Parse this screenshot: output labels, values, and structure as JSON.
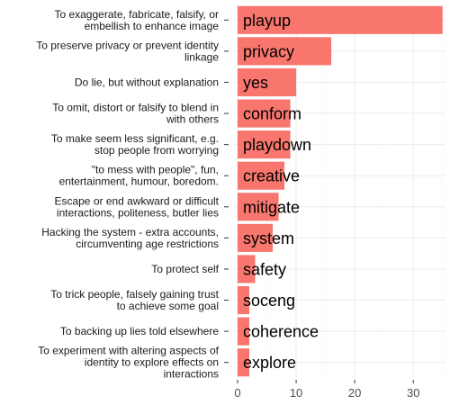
{
  "chart_data": {
    "type": "bar",
    "orientation": "horizontal",
    "title": "",
    "xlabel": "",
    "ylabel": "",
    "xlim": [
      0,
      35.5
    ],
    "xticks": [
      0,
      10,
      20,
      30
    ],
    "grid": true,
    "legend": "none",
    "bar_color": "#f8766d",
    "panel_color": "#ffffff",
    "grid_color": "#ebebeb",
    "categories": [
      {
        "label_lines": [
          "To exaggerate, fabricate, falsify, or",
          "embellish to enhance image"
        ],
        "code": "playup",
        "value": 35
      },
      {
        "label_lines": [
          "To preserve privacy or prevent identity",
          "linkage"
        ],
        "code": "privacy",
        "value": 16
      },
      {
        "label_lines": [
          "Do lie, but without explanation"
        ],
        "code": "yes",
        "value": 10
      },
      {
        "label_lines": [
          "To omit, distort or falsify to blend in",
          "with others"
        ],
        "code": "conform",
        "value": 9
      },
      {
        "label_lines": [
          "To make seem less significant, e.g.",
          "stop people from worrying"
        ],
        "code": "playdown",
        "value": 9
      },
      {
        "label_lines": [
          "\"to mess with people\", fun,",
          "entertainment, humour, boredom."
        ],
        "code": "creative",
        "value": 8
      },
      {
        "label_lines": [
          "Escape or end awkward or difficult",
          "interactions, politeness, butler lies"
        ],
        "code": "mitigate",
        "value": 7
      },
      {
        "label_lines": [
          "Hacking the system - extra accounts,",
          "circumventing age restrictions"
        ],
        "code": "system",
        "value": 6
      },
      {
        "label_lines": [
          "To protect self"
        ],
        "code": "safety",
        "value": 3
      },
      {
        "label_lines": [
          "To trick people, falsely gaining trust",
          "to achieve some goal"
        ],
        "code": "soceng",
        "value": 2
      },
      {
        "label_lines": [
          "To backing up lies told elsewhere"
        ],
        "code": "coherence",
        "value": 2
      },
      {
        "label_lines": [
          "To experiment with altering aspects of",
          "identity to explore effects on",
          "interactions"
        ],
        "code": "explore",
        "value": 2
      }
    ]
  }
}
